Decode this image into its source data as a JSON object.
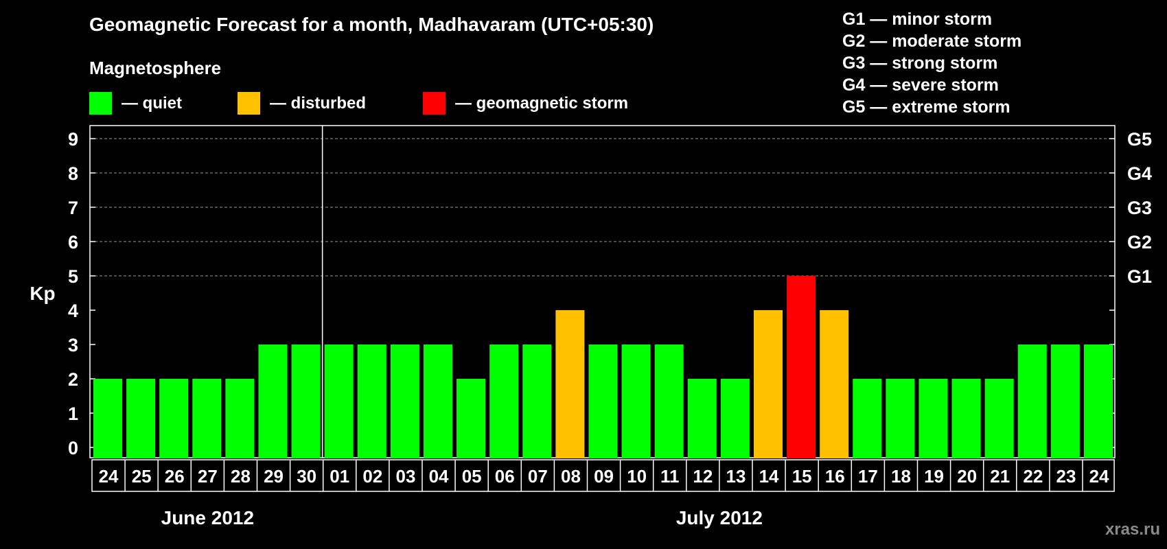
{
  "header": {
    "title": "Geomagnetic Forecast for a month, Madhavaram (UTC+05:30)",
    "subtitle": "Magnetosphere"
  },
  "legend": [
    {
      "label": "— quiet",
      "color": "#00ff00"
    },
    {
      "label": "— disturbed",
      "color": "#ffc000"
    },
    {
      "label": "— geomagnetic storm",
      "color": "#ff0000"
    }
  ],
  "storm_levels": [
    "G1 — minor storm",
    "G2 — moderate storm",
    "G3 — strong storm",
    "G4 — severe storm",
    "G5 — extreme storm"
  ],
  "watermark": "xras.ru",
  "chart_data": {
    "type": "bar",
    "title": "Geomagnetic Forecast for a month, Madhavaram (UTC+05:30)",
    "ylabel": "Kp",
    "ylim": [
      0,
      9
    ],
    "yticks": [
      "0",
      "1",
      "2",
      "3",
      "4",
      "5",
      "6",
      "7",
      "8",
      "9"
    ],
    "right_axis": [
      {
        "kp": 5,
        "label": "G1"
      },
      {
        "kp": 6,
        "label": "G2"
      },
      {
        "kp": 7,
        "label": "G3"
      },
      {
        "kp": 8,
        "label": "G4"
      },
      {
        "kp": 9,
        "label": "G5"
      }
    ],
    "grid_from": 5,
    "categories": [
      "24",
      "25",
      "26",
      "27",
      "28",
      "29",
      "30",
      "01",
      "02",
      "03",
      "04",
      "05",
      "06",
      "07",
      "08",
      "09",
      "10",
      "11",
      "12",
      "13",
      "14",
      "15",
      "16",
      "17",
      "18",
      "19",
      "20",
      "21",
      "22",
      "23",
      "24"
    ],
    "values": [
      2,
      2,
      2,
      2,
      2,
      3,
      3,
      3,
      3,
      3,
      3,
      2,
      3,
      3,
      4,
      3,
      3,
      3,
      2,
      2,
      4,
      5,
      4,
      2,
      2,
      2,
      2,
      2,
      3,
      3,
      3
    ],
    "colors": {
      "quiet": "#00ff00",
      "disturbed": "#ffc000",
      "storm": "#ff0000"
    },
    "months": [
      {
        "label": "June 2012",
        "start": 0,
        "end": 6
      },
      {
        "label": "July 2012",
        "start": 7,
        "end": 30
      }
    ]
  }
}
